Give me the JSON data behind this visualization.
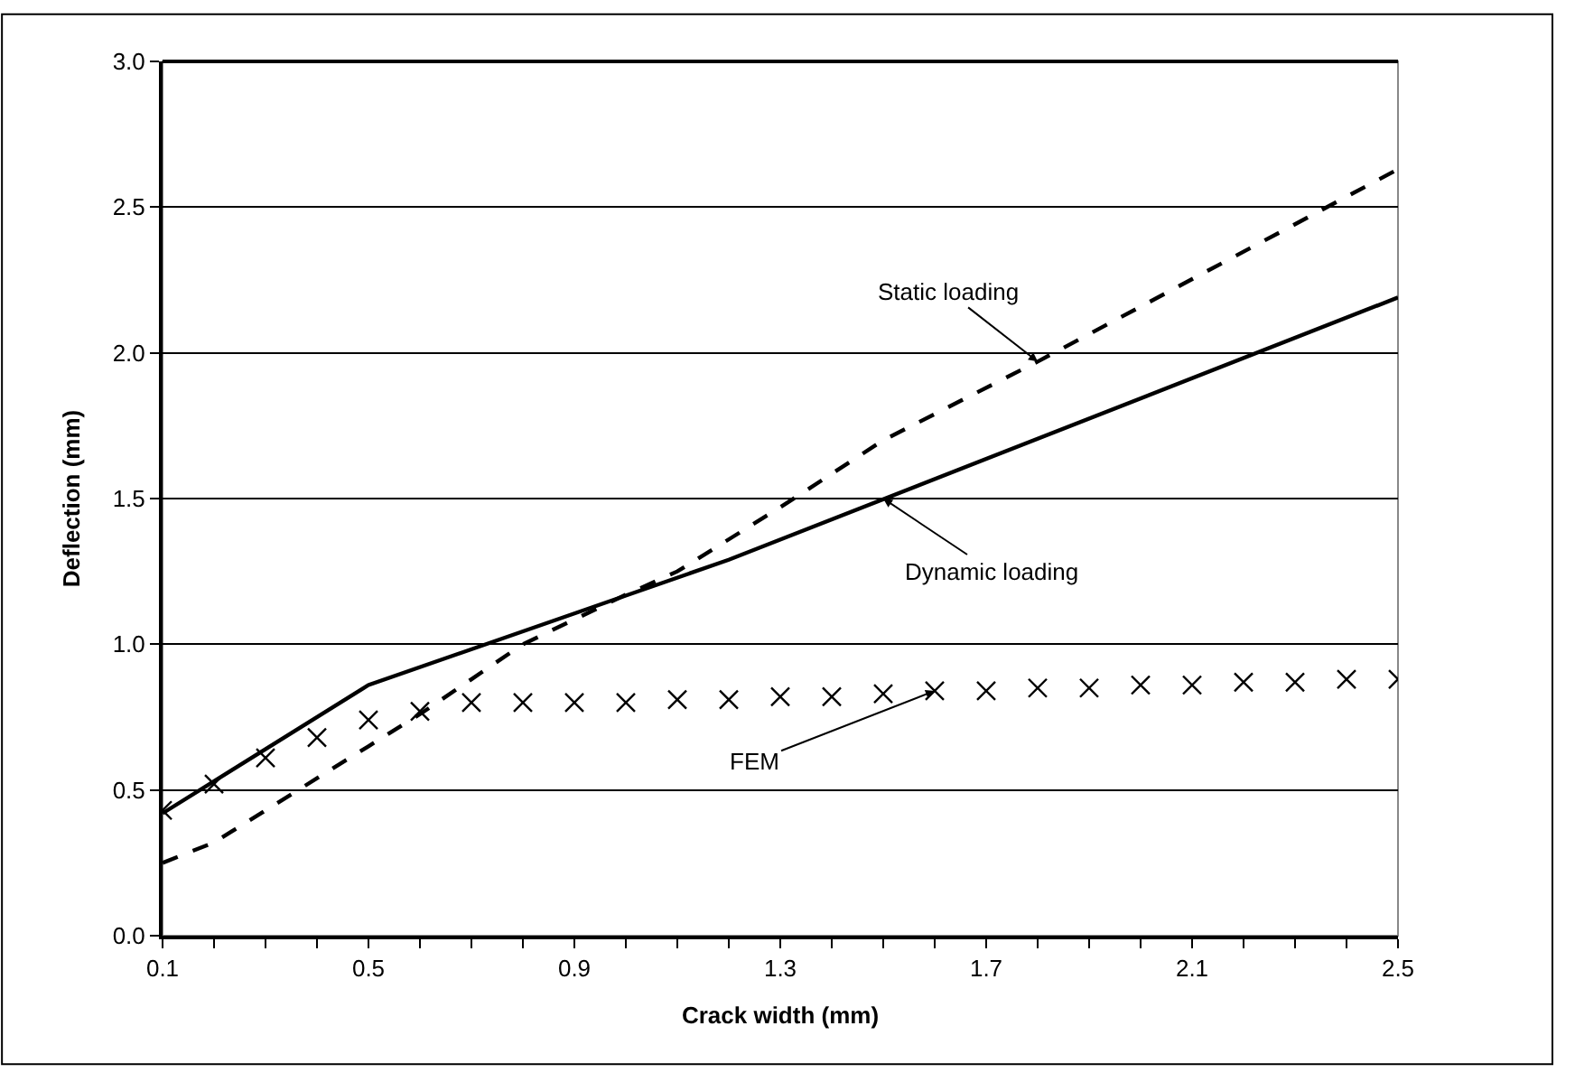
{
  "chart_data": {
    "type": "line",
    "xlabel": "Crack width (mm)",
    "ylabel": "Deflection (mm)",
    "xlim": [
      0.1,
      2.5
    ],
    "xticks": [
      0.1,
      {
        "value": 0.2,
        "label": null
      },
      {
        "value": 0.3,
        "label": null
      },
      {
        "value": 0.4,
        "label": null
      },
      0.5,
      {
        "value": 0.6,
        "label": null
      },
      {
        "value": 0.7,
        "label": null
      },
      {
        "value": 0.8,
        "label": null
      },
      0.9,
      {
        "value": 1.0,
        "label": null
      },
      {
        "value": 1.1,
        "label": null
      },
      {
        "value": 1.2,
        "label": null
      },
      1.3,
      {
        "value": 1.4,
        "label": null
      },
      {
        "value": 1.5,
        "label": null
      },
      {
        "value": 1.6,
        "label": null
      },
      1.7,
      {
        "value": 1.8,
        "label": null
      },
      {
        "value": 1.9,
        "label": null
      },
      {
        "value": 2.0,
        "label": null
      },
      2.1,
      {
        "value": 2.2,
        "label": null
      },
      {
        "value": 2.3,
        "label": null
      },
      {
        "value": 2.4,
        "label": null
      },
      2.5
    ],
    "ylim": [
      0,
      3
    ],
    "yticks": [
      {
        "value": 0,
        "label": "0.0"
      },
      0.5,
      {
        "value": 1,
        "label": "1.0"
      },
      1.5,
      {
        "value": 2,
        "label": "2.0"
      },
      2.5,
      {
        "value": 3,
        "label": "3.0"
      }
    ],
    "grid": "y",
    "series": [
      {
        "line_style": "solid",
        "color": "#000000",
        "x": [
          0.1,
          0.5,
          1.2,
          2.5
        ],
        "values": [
          0.42,
          0.86,
          1.29,
          2.19
        ]
      },
      {
        "line_style": "dashed",
        "color": "#000000",
        "x": [
          0.1,
          0.2,
          0.5,
          0.6,
          0.7,
          0.8,
          1.0,
          1.1,
          1.3,
          1.5,
          1.8,
          2.5
        ],
        "values": [
          0.25,
          0.32,
          0.65,
          0.76,
          0.88,
          1.0,
          1.17,
          1.25,
          1.47,
          1.7,
          1.97,
          2.63
        ]
      },
      {
        "type": "scatter",
        "marker": "cross",
        "color": "#000000",
        "x": [
          0.1,
          0.2,
          0.3,
          0.4,
          0.5,
          0.6,
          0.7,
          0.8,
          0.9,
          1.0,
          1.1,
          1.2,
          1.3,
          1.4,
          1.5,
          1.6,
          1.7,
          1.8,
          1.9,
          2.0,
          2.1,
          2.2,
          2.3,
          2.4,
          2.5
        ],
        "values": [
          0.43,
          0.52,
          0.61,
          0.68,
          0.74,
          0.77,
          0.8,
          0.8,
          0.8,
          0.8,
          0.81,
          0.81,
          0.82,
          0.82,
          0.83,
          0.84,
          0.84,
          0.85,
          0.85,
          0.86,
          0.86,
          0.87,
          0.87,
          0.88,
          0.88
        ]
      }
    ],
    "annotations": [
      {
        "text": "Static loading",
        "x": 1.8,
        "y": 1.97
      },
      {
        "text": "Dynamic loading",
        "x": 1.5,
        "y": 1.5
      },
      {
        "text": "FEM",
        "x": 1.6,
        "y": 0.84
      }
    ]
  }
}
